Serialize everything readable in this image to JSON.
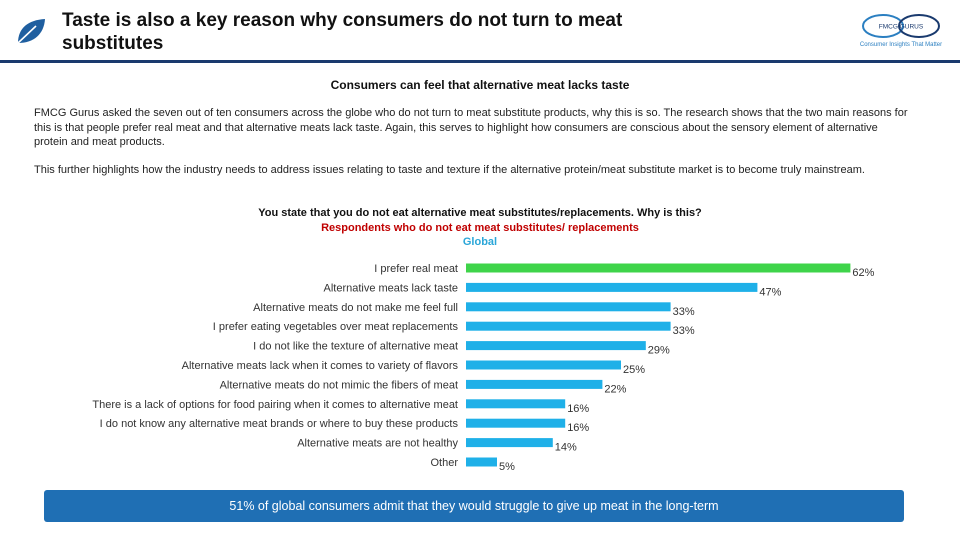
{
  "header": {
    "title_line1": "Taste is also a key reason why consumers do not turn to meat",
    "title_line2": "substitutes",
    "brand": {
      "name": "FMCG GURUS",
      "tagline": "Consumer Insights That Matter",
      "accent": "#2b7fc1"
    }
  },
  "subtitle": "Consumers can feel that alternative meat lacks taste",
  "body": {
    "paragraph1": "FMCG Gurus asked the seven out of ten consumers across the globe who do not turn to meat substitute products, why this is so. The research shows that the two main reasons for this is that people prefer real meat and that alternative meats lack taste. Again, this serves to highlight how consumers are conscious about the sensory element of alternative protein and meat products.",
    "paragraph2": "This further highlights how the industry needs to address issues relating to taste and texture if the alternative protein/meat substitute market is to become truly mainstream."
  },
  "question": {
    "title": "You state that you do not eat alternative meat substitutes/replacements. Why is this?",
    "respondents": "Respondents who do not eat meat substitutes/ replacements",
    "region": "Global"
  },
  "chart_data": {
    "type": "bar",
    "orientation": "horizontal",
    "title": "You state that you do not eat alternative meat substitutes/replacements. Why is this?",
    "categories": [
      "I prefer real meat",
      "Alternative meats lack taste",
      "Alternative meats do not make me feel full",
      "I prefer eating vegetables over meat replacements",
      "I do not like the texture of alternative meat",
      "Alternative meats lack when it comes to variety of flavors",
      "Alternative meats do not mimic the fibers of meat",
      "There is a lack of options for food pairing when it comes to alternative meat",
      "I do not know any alternative meat brands or where to buy these products",
      "Alternative meats are not healthy",
      "Other"
    ],
    "values": [
      62,
      47,
      33,
      33,
      29,
      25,
      22,
      16,
      16,
      14,
      5
    ],
    "value_suffix": "%",
    "xlim": [
      0,
      100
    ],
    "colors": {
      "highlight": "#3fd44a",
      "default": "#1fb0e8"
    },
    "highlight_index": 0
  },
  "callout": {
    "text": "51% of global consumers admit that they would struggle to give up meat in the long-term"
  }
}
